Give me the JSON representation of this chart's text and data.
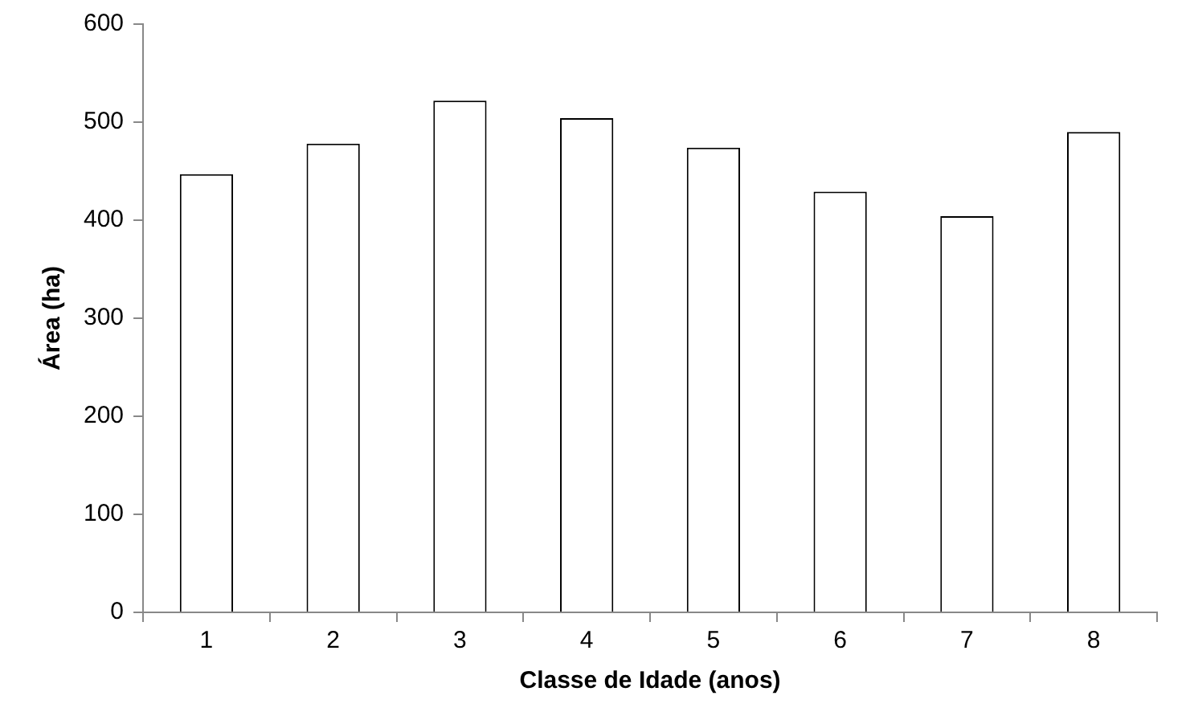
{
  "chart_data": {
    "type": "bar",
    "xlabel": "Classe de Idade (anos)",
    "ylabel": "Área (ha)",
    "categories": [
      "1",
      "2",
      "3",
      "4",
      "5",
      "6",
      "7",
      "8"
    ],
    "values": [
      447,
      478,
      522,
      504,
      474,
      429,
      404,
      490
    ],
    "color": "#ffffff",
    "ylim": [
      0,
      600
    ],
    "yticks": [
      0,
      100,
      200,
      300,
      400,
      500,
      600
    ],
    "grid": false,
    "legend": false
  }
}
